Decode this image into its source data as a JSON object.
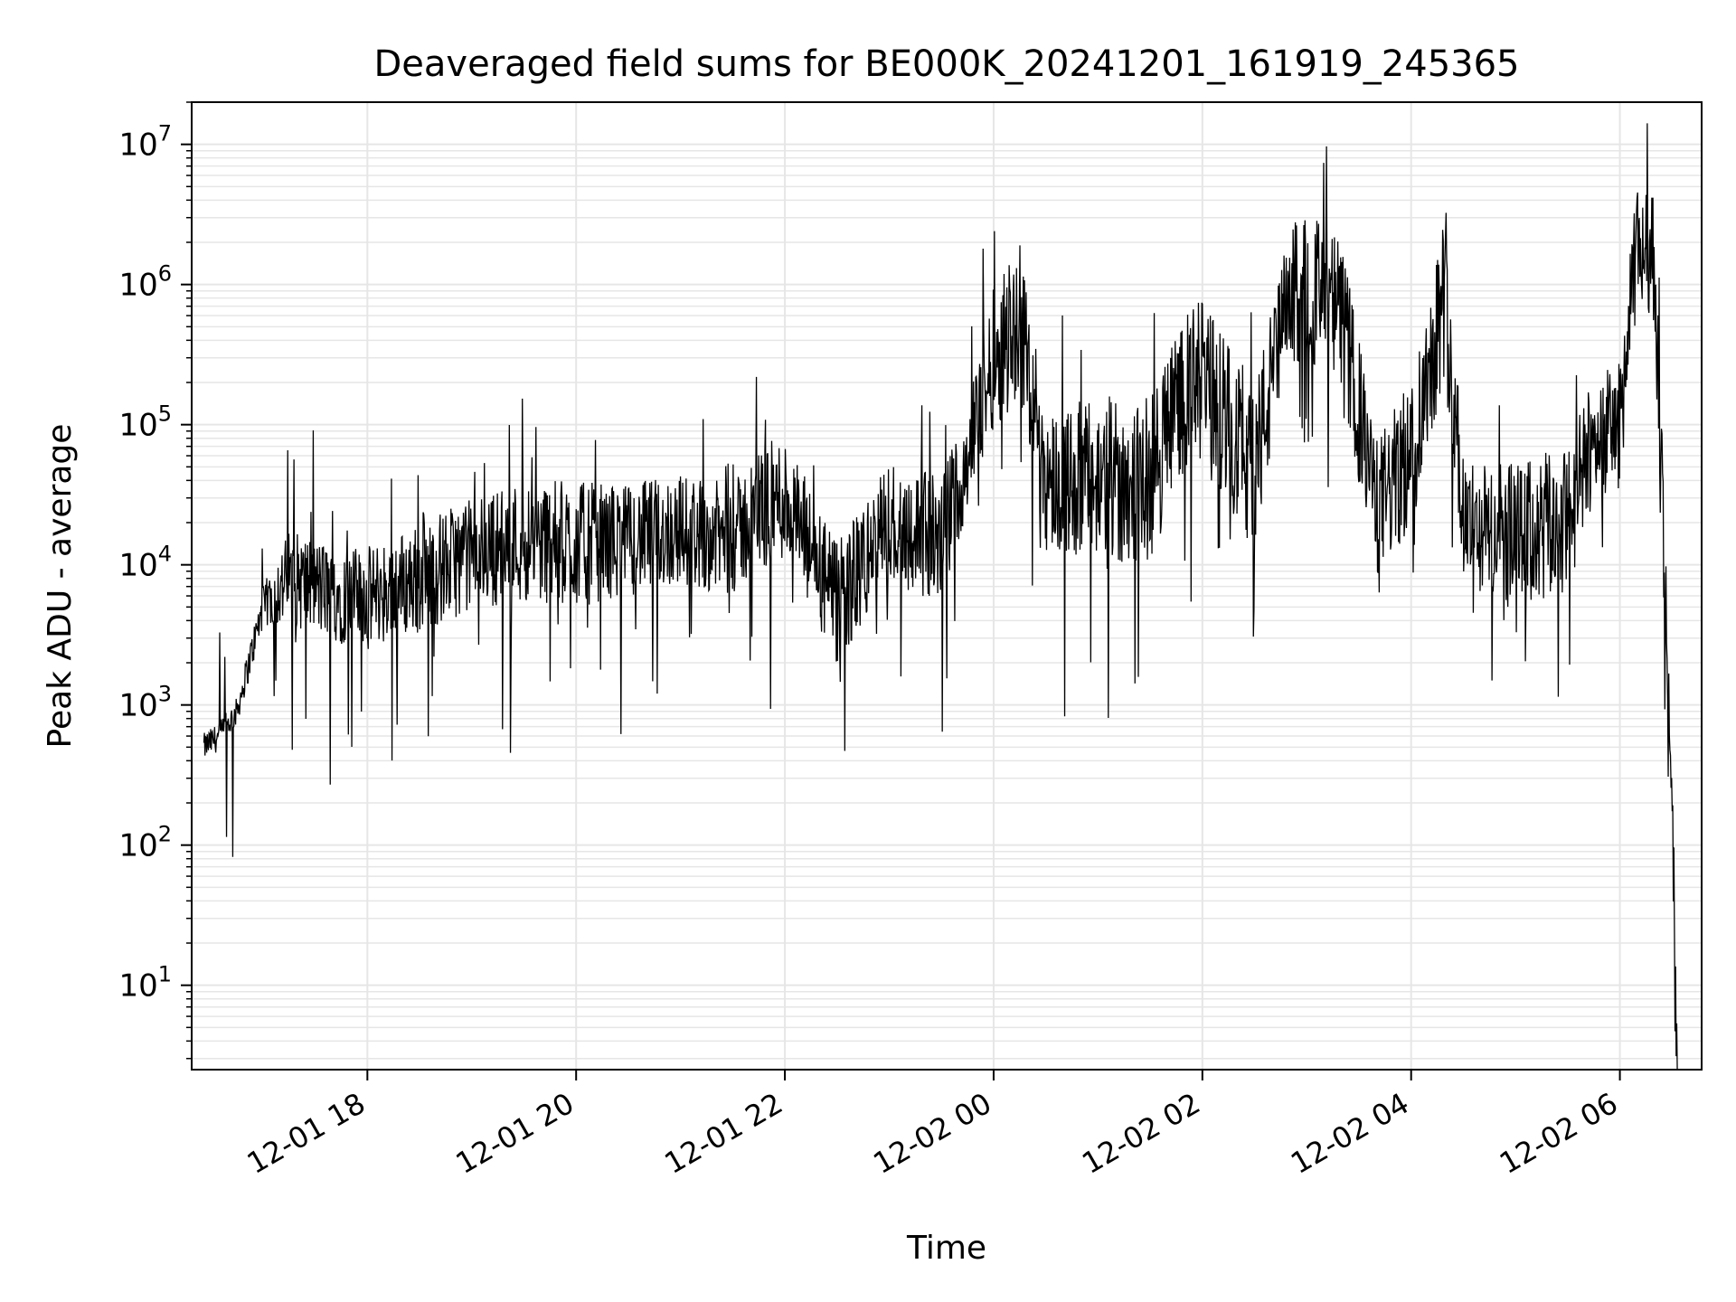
{
  "colors": {
    "series": "#000000",
    "grid": "#e6e6e6",
    "axes": "#000000",
    "background": "#ffffff"
  },
  "chart_data": {
    "type": "line",
    "title": "Deaveraged field sums for BE000K_20241201_161919_245365",
    "xlabel": "Time",
    "ylabel": "Peak ADU - average",
    "yscale": "log",
    "ylim": [
      2.5,
      20000000
    ],
    "xlim": [
      "2024-12-01 16:19",
      "2024-12-02 06:47"
    ],
    "grid": true,
    "legend": "none",
    "xticks": [
      {
        "t": "2024-12-01 18:00",
        "label": "12-01 18"
      },
      {
        "t": "2024-12-01 20:00",
        "label": "12-01 20"
      },
      {
        "t": "2024-12-01 22:00",
        "label": "12-01 22"
      },
      {
        "t": "2024-12-02 00:00",
        "label": "12-02 00"
      },
      {
        "t": "2024-12-02 02:00",
        "label": "12-02 02"
      },
      {
        "t": "2024-12-02 04:00",
        "label": "12-02 04"
      },
      {
        "t": "2024-12-02 06:00",
        "label": "12-02 06"
      }
    ],
    "yticks": [
      {
        "value": 10,
        "base": "10",
        "exp": "1"
      },
      {
        "value": 100,
        "base": "10",
        "exp": "2"
      },
      {
        "value": 1000,
        "base": "10",
        "exp": "3"
      },
      {
        "value": 10000,
        "base": "10",
        "exp": "4"
      },
      {
        "value": 100000,
        "base": "10",
        "exp": "5"
      },
      {
        "value": 1000000,
        "base": "10",
        "exp": "6"
      },
      {
        "value": 10000000,
        "base": "10",
        "exp": "7"
      }
    ],
    "series": [
      {
        "x": [
          "2024-12-01 16:26",
          "2024-12-01 16:35",
          "2024-12-01 16:45",
          "2024-12-01 17:00",
          "2024-12-01 17:15",
          "2024-12-01 17:30",
          "2024-12-01 17:45",
          "2024-12-01 18:00",
          "2024-12-01 18:30",
          "2024-12-01 19:00",
          "2024-12-01 19:30",
          "2024-12-01 20:00",
          "2024-12-01 20:30",
          "2024-12-01 21:00",
          "2024-12-01 21:30",
          "2024-12-01 21:45",
          "2024-12-01 22:00",
          "2024-12-01 22:30",
          "2024-12-01 23:00",
          "2024-12-01 23:30",
          "2024-12-01 23:45",
          "2024-12-02 00:00",
          "2024-12-02 00:15",
          "2024-12-02 00:30",
          "2024-12-02 01:00",
          "2024-12-02 01:30",
          "2024-12-02 01:45",
          "2024-12-02 02:00",
          "2024-12-02 02:30",
          "2024-12-02 02:50",
          "2024-12-02 03:00",
          "2024-12-02 03:20",
          "2024-12-02 03:40",
          "2024-12-02 04:00",
          "2024-12-02 04:20",
          "2024-12-02 04:30",
          "2024-12-02 05:00",
          "2024-12-02 05:30",
          "2024-12-02 05:45",
          "2024-12-02 06:00",
          "2024-12-02 06:10",
          "2024-12-02 06:20",
          "2024-12-02 06:30",
          "2024-12-02 06:33"
        ],
        "y": [
          500,
          600,
          900,
          5000,
          8000,
          7000,
          6000,
          6000,
          8000,
          12000,
          15000,
          14000,
          15000,
          18000,
          15000,
          25000,
          30000,
          5000,
          20000,
          15000,
          60000,
          300000,
          600000,
          40000,
          40000,
          40000,
          150000,
          200000,
          50000,
          800000,
          1000000,
          600000,
          25000,
          60000,
          1000000,
          20000,
          15000,
          20000,
          80000,
          100000,
          2000000,
          1500000,
          100,
          4
        ],
        "bands": [
          0.1,
          0.1,
          0.1,
          0.15,
          0.35,
          0.35,
          0.35,
          0.35,
          0.4,
          0.4,
          0.45,
          0.45,
          0.4,
          0.4,
          0.4,
          0.45,
          0.45,
          0.45,
          0.45,
          0.45,
          0.4,
          0.5,
          0.6,
          0.5,
          0.6,
          0.6,
          0.55,
          0.6,
          0.6,
          0.5,
          0.55,
          0.55,
          0.5,
          0.55,
          0.6,
          0.45,
          0.55,
          0.55,
          0.45,
          0.45,
          0.45,
          0.45,
          0.6,
          0.6
        ]
      }
    ]
  }
}
